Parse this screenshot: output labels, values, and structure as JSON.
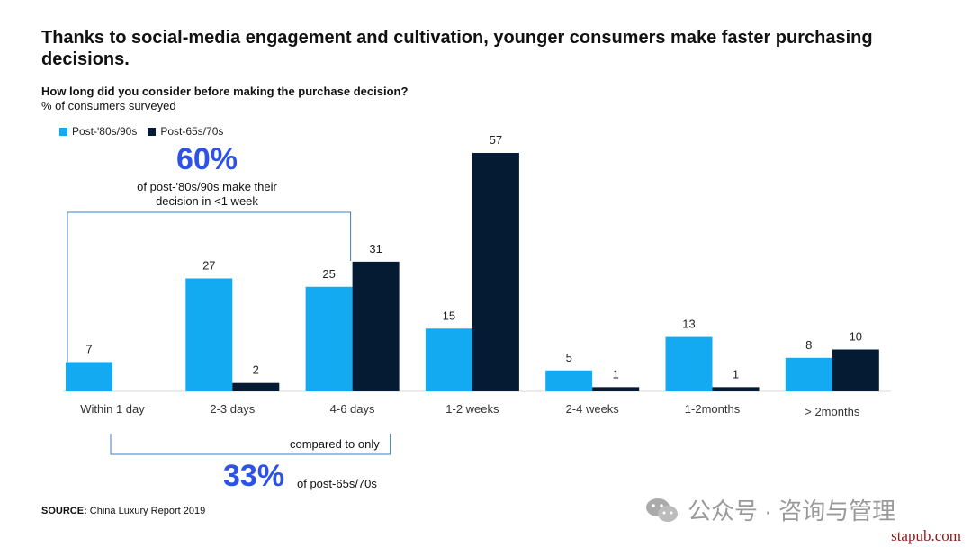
{
  "header": {
    "title": "Thanks to social-media engagement and cultivation, younger consumers make faster purchasing decisions.",
    "question": "How long did you consider before making the purchase decision?",
    "unit": "% of consumers surveyed"
  },
  "callouts": {
    "top_value": "60%",
    "top_text": "of post-'80s/90s make their decision in <1 week",
    "compared": "compared to only",
    "bottom_value": "33%",
    "bottom_text": "of post-65s/70s"
  },
  "source": {
    "label": "SOURCE:",
    "text": "China Luxury Report 2019"
  },
  "watermark": {
    "text": "公众号 · 咨询与管理",
    "site": "stapub.com"
  },
  "colors": {
    "young": "#13aaf1",
    "old": "#041b33",
    "accent": "#2c52e8",
    "bracket": "#3a7fc4"
  },
  "chart_data": {
    "type": "bar",
    "categories": [
      "Within 1 day",
      "2-3 days",
      "4-6 days",
      "1-2 weeks",
      "2-4 weeks",
      "1-2months",
      "> 2months"
    ],
    "series": [
      {
        "name": "Post-'80s/90s",
        "values": [
          7,
          27,
          25,
          15,
          5,
          13,
          8
        ]
      },
      {
        "name": "Post-65s/70s",
        "values": [
          null,
          2,
          31,
          57,
          1,
          1,
          10
        ]
      }
    ],
    "ylim": [
      0,
      60
    ],
    "legend": "top-left",
    "grid": false
  }
}
